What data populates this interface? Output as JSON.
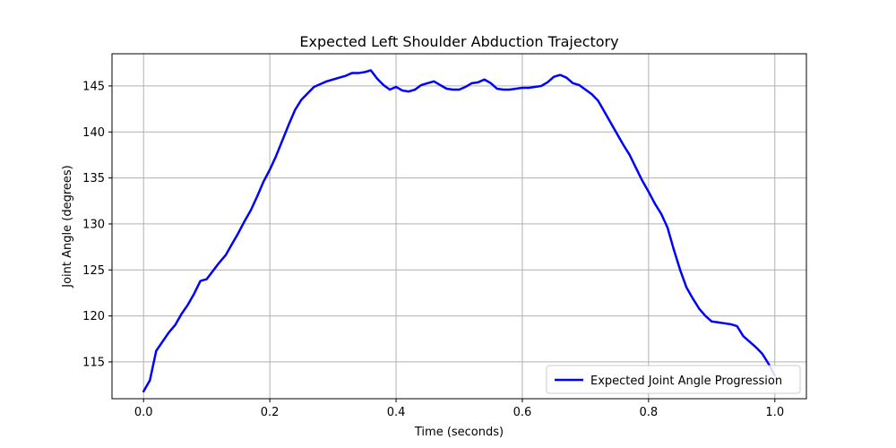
{
  "chart_data": {
    "type": "line",
    "title": "Expected Left Shoulder Abduction Trajectory",
    "xlabel": "Time (seconds)",
    "ylabel": "Joint Angle (degrees)",
    "xlim": [
      -0.05,
      1.05
    ],
    "ylim": [
      111.0,
      148.5
    ],
    "xticks": [
      0.0,
      0.2,
      0.4,
      0.6,
      0.8,
      1.0
    ],
    "xtick_labels": [
      "0.0",
      "0.2",
      "0.4",
      "0.6",
      "0.8",
      "1.0"
    ],
    "yticks": [
      115,
      120,
      125,
      130,
      135,
      140,
      145
    ],
    "ytick_labels": [
      "115",
      "120",
      "125",
      "130",
      "135",
      "140",
      "145"
    ],
    "grid": true,
    "legend_position": "lower-right",
    "series": [
      {
        "name": "Expected Joint Angle Progression",
        "color": "#0000ff",
        "x": [
          0.0,
          0.01,
          0.02,
          0.03,
          0.04,
          0.05,
          0.06,
          0.07,
          0.08,
          0.09,
          0.1,
          0.11,
          0.12,
          0.13,
          0.14,
          0.15,
          0.16,
          0.17,
          0.18,
          0.19,
          0.2,
          0.21,
          0.22,
          0.23,
          0.24,
          0.25,
          0.26,
          0.27,
          0.28,
          0.29,
          0.3,
          0.31,
          0.32,
          0.33,
          0.34,
          0.35,
          0.36,
          0.37,
          0.38,
          0.39,
          0.4,
          0.41,
          0.42,
          0.43,
          0.44,
          0.45,
          0.46,
          0.47,
          0.48,
          0.49,
          0.5,
          0.51,
          0.52,
          0.53,
          0.54,
          0.55,
          0.56,
          0.57,
          0.58,
          0.59,
          0.6,
          0.61,
          0.62,
          0.63,
          0.64,
          0.65,
          0.66,
          0.67,
          0.68,
          0.69,
          0.7,
          0.71,
          0.72,
          0.73,
          0.74,
          0.75,
          0.76,
          0.77,
          0.78,
          0.79,
          0.8,
          0.81,
          0.82,
          0.83,
          0.84,
          0.85,
          0.86,
          0.87,
          0.88,
          0.89,
          0.9,
          0.91,
          0.92,
          0.93,
          0.94,
          0.95,
          0.96,
          0.97,
          0.98,
          0.99,
          1.0
        ],
        "y": [
          111.8,
          113.0,
          116.2,
          117.2,
          118.2,
          119.0,
          120.2,
          121.2,
          122.4,
          123.8,
          124.0,
          124.9,
          125.8,
          126.6,
          127.8,
          129.0,
          130.3,
          131.5,
          133.0,
          134.6,
          135.9,
          137.4,
          139.1,
          140.8,
          142.4,
          143.5,
          144.2,
          144.9,
          145.2,
          145.5,
          145.7,
          145.9,
          146.1,
          146.4,
          146.4,
          146.5,
          146.7,
          145.8,
          145.1,
          144.6,
          144.9,
          144.5,
          144.4,
          144.6,
          145.1,
          145.3,
          145.5,
          145.1,
          144.7,
          144.6,
          144.6,
          144.9,
          145.3,
          145.4,
          145.7,
          145.3,
          144.7,
          144.6,
          144.6,
          144.7,
          144.8,
          144.8,
          144.9,
          145.0,
          145.4,
          146.0,
          146.2,
          145.9,
          145.3,
          145.1,
          144.6,
          144.1,
          143.4,
          142.2,
          141.0,
          139.8,
          138.6,
          137.5,
          136.1,
          134.7,
          133.5,
          132.2,
          131.1,
          129.6,
          127.2,
          125.0,
          123.1,
          121.9,
          120.8,
          120.0,
          119.4,
          119.3,
          119.2,
          119.1,
          118.9,
          117.8,
          117.2,
          116.6,
          115.9,
          114.8,
          113.5
        ]
      }
    ]
  }
}
